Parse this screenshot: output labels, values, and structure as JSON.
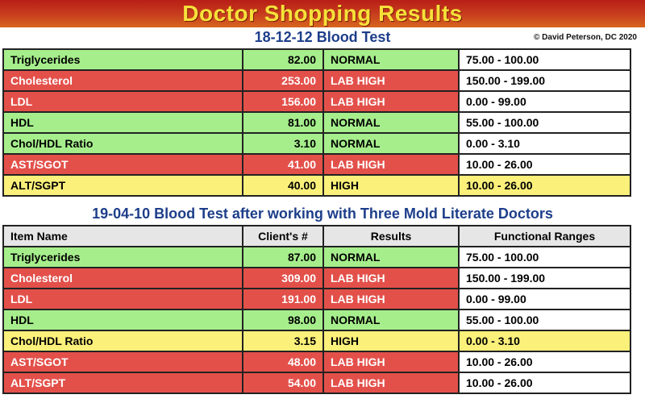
{
  "title": "Doctor Shopping Results",
  "test1": {
    "heading": "18-12-12 Blood Test",
    "copyright": "© David Peterson, DC 2020",
    "rows": [
      {
        "name": "Triglycerides",
        "value": "82.00",
        "result": "NORMAL",
        "range": "75.00 - 100.00",
        "status": "normal"
      },
      {
        "name": "Cholesterol",
        "value": "253.00",
        "result": "LAB HIGH",
        "range": "150.00 - 199.00",
        "status": "high"
      },
      {
        "name": "LDL",
        "value": "156.00",
        "result": "LAB HIGH",
        "range": "0.00 - 99.00",
        "status": "high"
      },
      {
        "name": "HDL",
        "value": "81.00",
        "result": "NORMAL",
        "range": "55.00 - 100.00",
        "status": "normal"
      },
      {
        "name": "Chol/HDL Ratio",
        "value": "3.10",
        "result": "NORMAL",
        "range": "0.00 - 3.10",
        "status": "normal"
      },
      {
        "name": "AST/SGOT",
        "value": "41.00",
        "result": "LAB HIGH",
        "range": "10.00 - 26.00",
        "status": "high"
      },
      {
        "name": "ALT/SGPT",
        "value": "40.00",
        "result": "HIGH",
        "range": "10.00 - 26.00",
        "status": "yellow"
      }
    ]
  },
  "test2": {
    "heading": "19-04-10 Blood Test after working with Three Mold Literate Doctors",
    "headers": {
      "item": "Item Name",
      "value": "Client's #",
      "result": "Results",
      "range": "Functional Ranges"
    },
    "rows": [
      {
        "name": "Triglycerides",
        "value": "87.00",
        "result": "NORMAL",
        "range": "75.00 - 100.00",
        "status": "normal"
      },
      {
        "name": "Cholesterol",
        "value": "309.00",
        "result": "LAB HIGH",
        "range": "150.00 - 199.00",
        "status": "high"
      },
      {
        "name": "LDL",
        "value": "191.00",
        "result": "LAB HIGH",
        "range": "0.00 - 99.00",
        "status": "high"
      },
      {
        "name": "HDL",
        "value": "98.00",
        "result": "NORMAL",
        "range": "55.00 - 100.00",
        "status": "normal"
      },
      {
        "name": "Chol/HDL Ratio",
        "value": "3.15",
        "result": "HIGH",
        "range": "0.00 - 3.10",
        "status": "yellow"
      },
      {
        "name": "AST/SGOT",
        "value": "48.00",
        "result": "LAB HIGH",
        "range": "10.00 - 26.00",
        "status": "high"
      },
      {
        "name": "ALT/SGPT",
        "value": "54.00",
        "result": "LAB HIGH",
        "range": "10.00 - 26.00",
        "status": "high"
      }
    ]
  },
  "colors": {
    "banner": "#c8401e",
    "title_text": "#f6e13a",
    "heading_text": "#1d3e8a",
    "normal_fill": "#a6ee8c",
    "high_fill": "#e3504a",
    "borderline_fill": "#fbf07a"
  }
}
